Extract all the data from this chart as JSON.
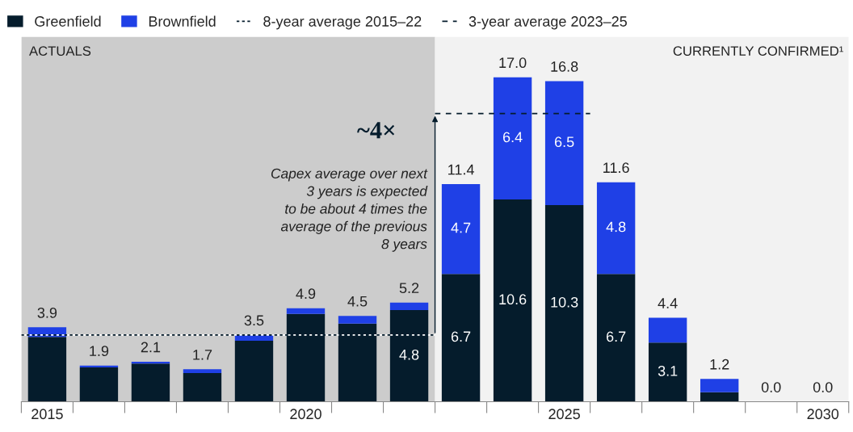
{
  "chart_data": {
    "type": "bar",
    "stacked": true,
    "x": [
      2015,
      2016,
      2017,
      2018,
      2019,
      2020,
      2021,
      2022,
      2023,
      2024,
      2025,
      2026,
      2027,
      2028,
      2029,
      2030
    ],
    "xlim": [
      2014.5,
      2030.5
    ],
    "xticks": [
      {
        "value": 2014.5,
        "label": null
      },
      2015,
      {
        "value": 2015.5,
        "label": null
      },
      {
        "value": 2016.5,
        "label": null
      },
      {
        "value": 2017.5,
        "label": null
      },
      {
        "value": 2018.5,
        "label": null
      },
      {
        "value": 2019.5,
        "label": null
      },
      2020,
      {
        "value": 2020.5,
        "label": null
      },
      {
        "value": 2021.5,
        "label": null
      },
      {
        "value": 2022.5,
        "label": null
      },
      {
        "value": 2023.5,
        "label": null
      },
      {
        "value": 2024.5,
        "label": null
      },
      2025,
      {
        "value": 2025.5,
        "label": null
      },
      {
        "value": 2026.5,
        "label": null
      },
      {
        "value": 2027.5,
        "label": null
      },
      {
        "value": 2028.5,
        "label": null
      },
      {
        "value": 2029.5,
        "label": null
      },
      2030,
      {
        "value": 2030.5,
        "label": null
      }
    ],
    "series": [
      {
        "name": "Greenfield",
        "color": "#051c2c",
        "values": [
          3.4,
          1.8,
          2.0,
          1.5,
          3.2,
          4.6,
          4.1,
          4.8,
          6.7,
          10.6,
          10.3,
          6.7,
          3.1,
          0.5,
          0.0,
          0.0
        ],
        "value_labels": [
          null,
          null,
          null,
          null,
          null,
          null,
          null,
          "4.8",
          "6.7",
          "10.6",
          "10.3",
          "6.7",
          "3.1",
          null,
          null,
          null
        ]
      },
      {
        "name": "Brownfield",
        "color": "#1f40e6",
        "values": [
          0.5,
          0.1,
          0.1,
          0.2,
          0.3,
          0.3,
          0.4,
          0.4,
          4.7,
          6.4,
          6.5,
          4.8,
          1.3,
          0.7,
          0.0,
          0.0
        ],
        "value_labels": [
          null,
          null,
          null,
          null,
          null,
          null,
          null,
          null,
          "4.7",
          "6.4",
          "6.5",
          "4.8",
          null,
          null,
          null,
          null
        ]
      },
      {
        "name": "8-year average 2015–22",
        "type": "line",
        "color": "#051c2c",
        "line_style": "dotted",
        "x": [
          2014.5,
          2022.5
        ],
        "values": [
          3.5,
          3.5
        ]
      },
      {
        "name": "3-year average 2023–25",
        "type": "line",
        "color": "#051c2c",
        "line_style": "dashed",
        "x": [
          2022.5,
          2025.5
        ],
        "values": [
          15.1,
          15.1
        ]
      }
    ],
    "totals": [
      "3.9",
      "1.9",
      "2.1",
      "1.7",
      "3.5",
      "4.9",
      "4.5",
      "5.2",
      "11.4",
      "17.0",
      "16.8",
      "11.6",
      "4.4",
      "1.2",
      "0.0",
      "0.0"
    ],
    "bands": [
      {
        "axis": "x",
        "from": 2014.5,
        "to": 2022.5,
        "label": "ACTUALS",
        "color": "#cccccc"
      },
      {
        "axis": "x",
        "from": 2022.5,
        "to": 2030.5,
        "label": "CURRENTLY CONFIRMED¹",
        "color": "#f2f2f2"
      }
    ],
    "annotations": [
      "~4×",
      "Capex average over next\n3 years is expected\nto be about 4 times the\naverage of the previous\n8 years"
    ],
    "legend": "top left",
    "grid": false
  }
}
